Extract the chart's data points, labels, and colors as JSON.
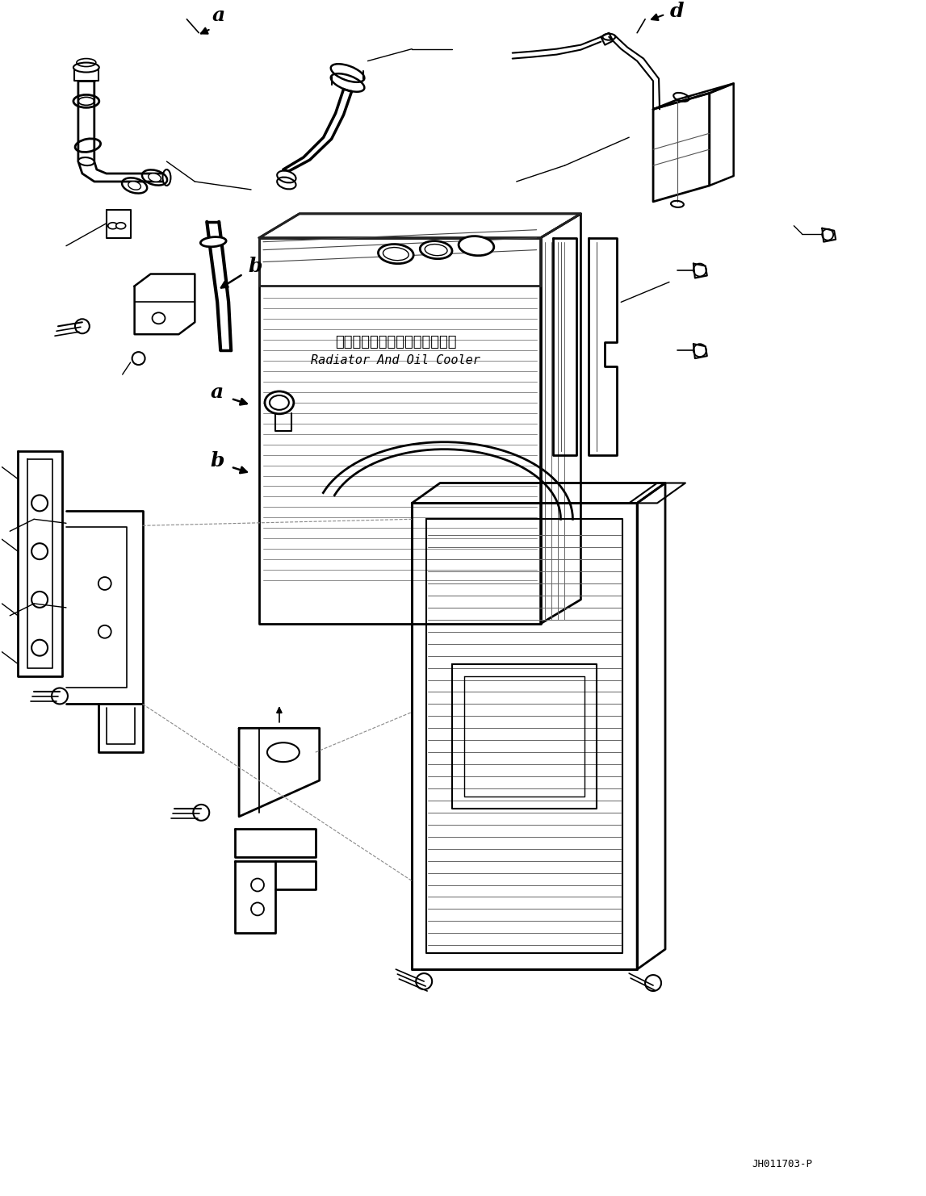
{
  "background_color": "#ffffff",
  "fig_width": 11.47,
  "fig_height": 14.82,
  "dpi": 100,
  "title_jp": "ラジエータおよびオイルクーラ",
  "title_en": "Radiator And Oil Cooler",
  "doc_number": "JH011703-P",
  "line_color": "#000000",
  "text_color": "#000000"
}
